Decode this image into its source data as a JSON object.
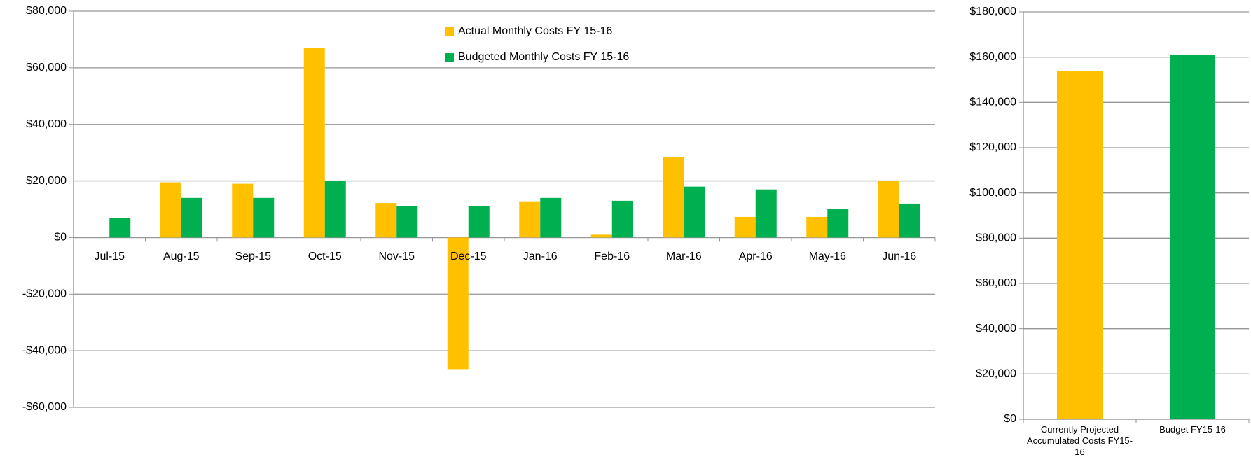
{
  "chart_data": [
    {
      "type": "bar",
      "categories": [
        "Jul-15",
        "Aug-15",
        "Sep-15",
        "Oct-15",
        "Nov-15",
        "Dec-15",
        "Jan-16",
        "Feb-16",
        "Mar-16",
        "Apr-16",
        "May-16",
        "Jun-16"
      ],
      "series": [
        {
          "name": "Actual Monthly Costs FY 15-16",
          "color": "#ffc000",
          "values": [
            0,
            19500,
            19000,
            67000,
            12200,
            -46500,
            12800,
            1000,
            28300,
            7300,
            7300,
            20000
          ]
        },
        {
          "name": "Budgeted Monthly Costs FY 15-16",
          "color": "#00b050",
          "values": [
            7000,
            14000,
            14000,
            20000,
            11000,
            11000,
            14000,
            13000,
            18000,
            17000,
            10000,
            12000
          ]
        }
      ],
      "ylim": [
        -60000,
        80000
      ],
      "yticks": [
        {
          "value": -60000,
          "label": "-$60,000"
        },
        {
          "value": -40000,
          "label": "-$40,000"
        },
        {
          "value": -20000,
          "label": "-$20,000"
        },
        {
          "value": 0,
          "label": "$0"
        },
        {
          "value": 20000,
          "label": "$20,000"
        },
        {
          "value": 40000,
          "label": "$40,000"
        },
        {
          "value": 60000,
          "label": "$60,000"
        },
        {
          "value": 80000,
          "label": "$80,000"
        }
      ],
      "grid": true,
      "legend": "top"
    },
    {
      "type": "bar",
      "categories": [
        "Currently Projected Accumulated Costs FY15-16",
        "Budget FY15-16"
      ],
      "values": [
        154000,
        161000
      ],
      "colors": [
        "#ffc000",
        "#00b050"
      ],
      "ylim": [
        0,
        180000
      ],
      "yticks": [
        {
          "value": 0,
          "label": "$0"
        },
        {
          "value": 20000,
          "label": "$20,000"
        },
        {
          "value": 40000,
          "label": "$40,000"
        },
        {
          "value": 60000,
          "label": "$60,000"
        },
        {
          "value": 80000,
          "label": "$80,000"
        },
        {
          "value": 100000,
          "label": "$100,000"
        },
        {
          "value": 120000,
          "label": "$120,000"
        },
        {
          "value": 140000,
          "label": "$140,000"
        },
        {
          "value": 160000,
          "label": "$160,000"
        },
        {
          "value": 180000,
          "label": "$180,000"
        }
      ],
      "grid": true
    }
  ]
}
